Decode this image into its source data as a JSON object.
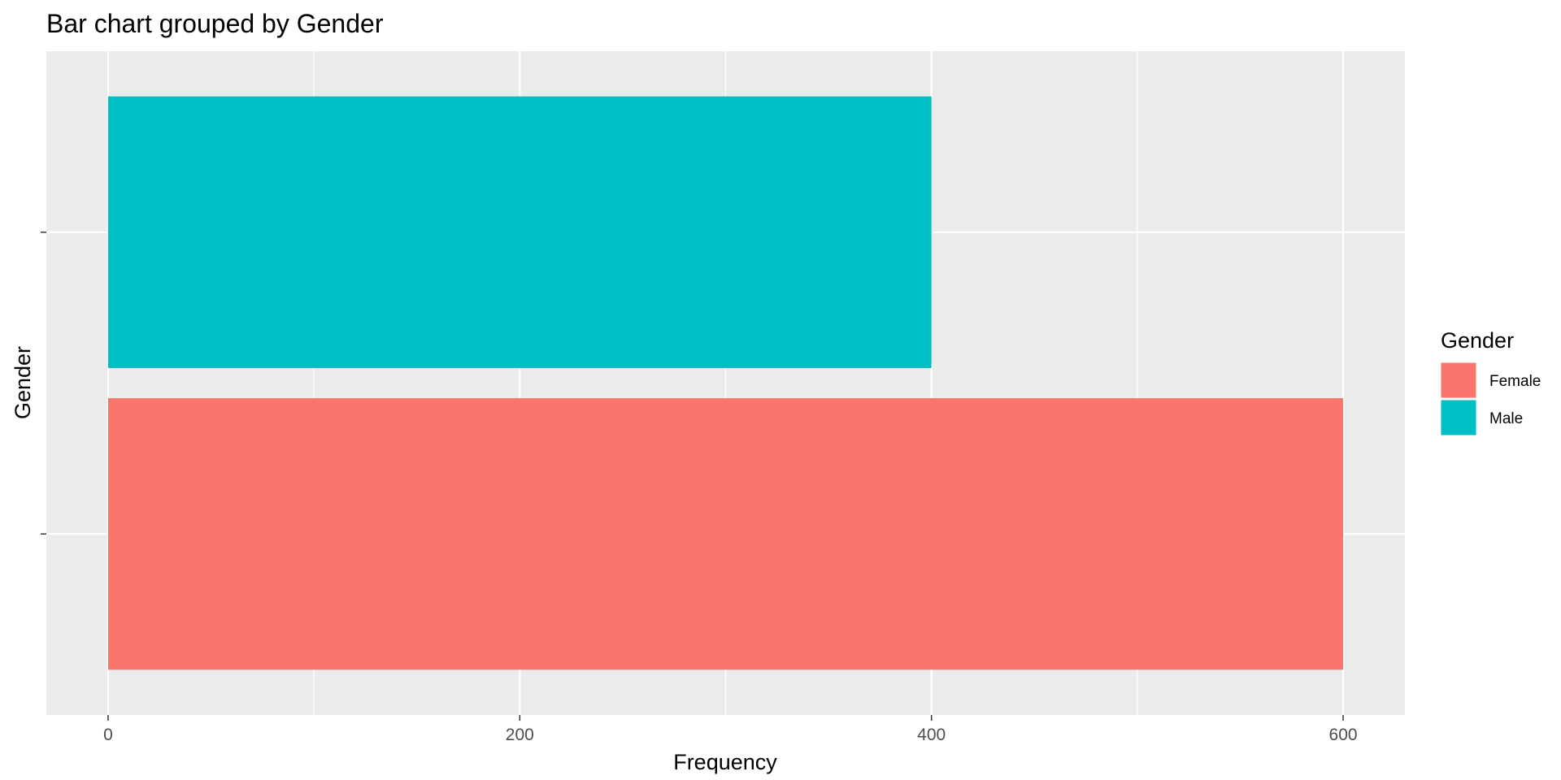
{
  "chart_data": {
    "type": "bar",
    "orientation": "horizontal",
    "title": "Bar chart grouped by Gender",
    "xlabel": "Frequency",
    "ylabel": "Gender",
    "categories": [
      "Female",
      "Male"
    ],
    "values": [
      600,
      400
    ],
    "colors": [
      "#F8766D",
      "#00BFC4"
    ],
    "xlim": [
      -30,
      630
    ],
    "x_major_ticks": [
      0,
      200,
      400,
      600
    ],
    "x_minor_ticks": [
      100,
      300,
      500
    ],
    "x_tick_labels": [
      "0",
      "200",
      "400",
      "600"
    ],
    "y_tick_labels": [
      "",
      ""
    ],
    "grid": true,
    "panel_background": "#EBEBEB",
    "grid_color": "#FFFFFF",
    "legend": {
      "title": "Gender",
      "position": "right",
      "entries": [
        {
          "label": "Female",
          "color": "#F8766D"
        },
        {
          "label": "Male",
          "color": "#00BFC4"
        }
      ]
    }
  }
}
